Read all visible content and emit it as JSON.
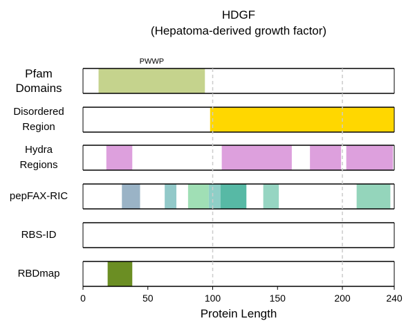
{
  "title_line1": "HDGF",
  "title_line2": "(Hepatoma-derived growth factor)",
  "xlabel": "Protein Length",
  "protein_length": 240,
  "xticks": [
    0,
    50,
    100,
    150,
    200,
    240
  ],
  "gridlines": [
    100,
    200
  ],
  "rows": [
    {
      "label": [
        "Pfam",
        "Domains"
      ],
      "segments": [
        {
          "start": 12,
          "end": 94,
          "color": "#c5d38d",
          "label": "PWWP"
        }
      ]
    },
    {
      "label": [
        "Disordered",
        "Region"
      ],
      "segments": [
        {
          "start": 98,
          "end": 240,
          "color": "#ffd700"
        }
      ]
    },
    {
      "label": [
        "Hydra",
        "Regions"
      ],
      "segments": [
        {
          "start": 18,
          "end": 38,
          "color": "#dda0dd"
        },
        {
          "start": 107,
          "end": 161,
          "color": "#dda0dd"
        },
        {
          "start": 175,
          "end": 199,
          "color": "#dda0dd"
        },
        {
          "start": 203,
          "end": 239,
          "color": "#dda0dd"
        }
      ]
    },
    {
      "label": [
        "pepFAX-RIC"
      ],
      "segments": [
        {
          "start": 30,
          "end": 44,
          "color": "#9ab3c6"
        },
        {
          "start": 63,
          "end": 72,
          "color": "#92c9c9"
        },
        {
          "start": 81,
          "end": 97,
          "color": "#a0dfb5"
        },
        {
          "start": 97,
          "end": 106,
          "color": "#8fcfc7"
        },
        {
          "start": 106,
          "end": 126,
          "color": "#57b9a5"
        },
        {
          "start": 139,
          "end": 151,
          "color": "#96d5c2"
        },
        {
          "start": 211,
          "end": 237,
          "color": "#94d5bb"
        }
      ]
    },
    {
      "label": [
        "RBS-ID"
      ],
      "segments": []
    },
    {
      "label": [
        "RBDmap"
      ],
      "segments": [
        {
          "start": 19,
          "end": 38,
          "color": "#6b8e23"
        }
      ]
    }
  ]
}
